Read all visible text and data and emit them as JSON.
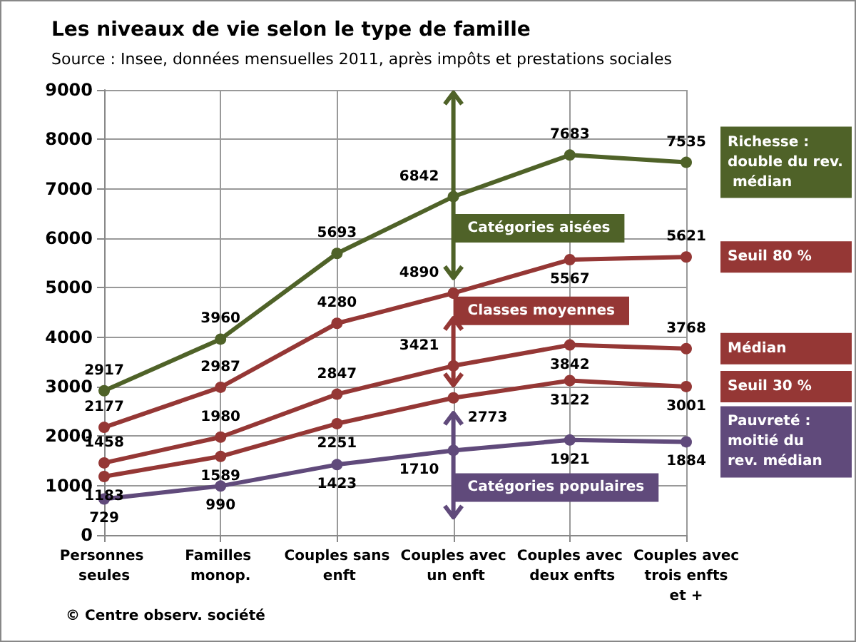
{
  "chart_data": {
    "type": "line",
    "title": "Les niveaux de vie selon le type de famille",
    "subtitle": "Source : Insee, données mensuelles 2011, après impôts et prestations sociales",
    "categories": [
      "Personnes seules",
      "Familles monop.",
      "Couples sans enft",
      "Couples avec un enft",
      "Couples avec deux enfts",
      "Couples avec trois enfts et +"
    ],
    "series": [
      {
        "name": "Richesse : double du rev. médian",
        "color": "#4f6228",
        "values": [
          2917,
          3960,
          5693,
          6842,
          7683,
          7535
        ]
      },
      {
        "name": "Seuil 80 %",
        "color": "#953735",
        "values": [
          2177,
          2987,
          4280,
          4890,
          5567,
          5621
        ]
      },
      {
        "name": "Médian",
        "color": "#953735",
        "values": [
          1458,
          1980,
          2847,
          3421,
          3842,
          3768
        ]
      },
      {
        "name": "Seuil 30 %",
        "color": "#953735",
        "values": [
          1183,
          1589,
          2251,
          2773,
          3122,
          3001
        ]
      },
      {
        "name": "Pauvreté : moitié du rev. médian",
        "color": "#604a7b",
        "values": [
          729,
          990,
          1423,
          1710,
          1921,
          1884
        ]
      }
    ],
    "annotations": [
      "Catégories aisées",
      "Classes moyennes",
      "Catégories populaires",
      "© Centre observ. société"
    ],
    "ylim": [
      0,
      9000
    ],
    "yticks": [
      0,
      1000,
      2000,
      3000,
      4000,
      5000,
      6000,
      7000,
      8000,
      9000
    ],
    "grid": true,
    "legend": false,
    "marker": "circle",
    "line_style": "solid",
    "data_labels": true
  }
}
